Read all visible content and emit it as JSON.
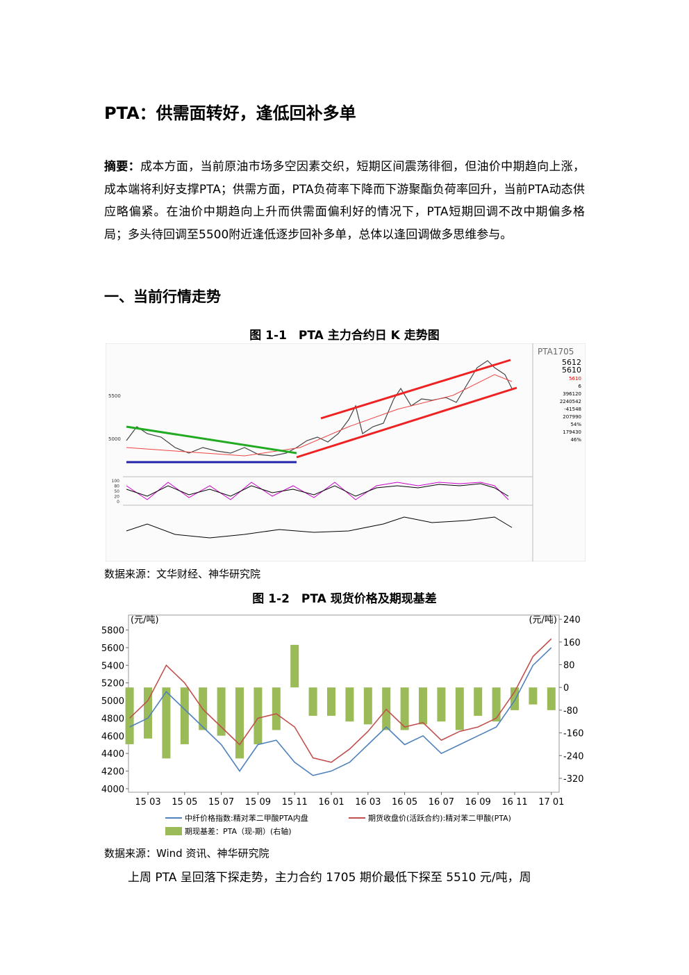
{
  "title": "PTA：供需面转好，逢低回补多单",
  "summary": {
    "label": "摘要：",
    "text": "成本方面，当前原油市场多空因素交织，短期区间震荡徘徊，但油价中期趋向上涨，成本端将利好支撑PTA；供需方面，PTA负荷率下降而下游聚酯负荷率回升，当前PTA动态供应略偏紧。在油价中期趋向上升而供需面偏利好的情况下，PTA短期回调不改中期偏多格局；多头待回调至5500附近逢低逐步回补多单，总体以逢回调做多思维参与。"
  },
  "section_heading": "一、当前行情走势",
  "figure1": {
    "caption": "图 1-1　PTA 主力合约日 K 走势图",
    "panel_title": "PTA1705",
    "price_ticks": [
      "5500",
      "5000"
    ],
    "osc_ticks": [
      "100",
      "80",
      "50",
      "20",
      "0"
    ],
    "quote_values": [
      "5612",
      "5610",
      "5610",
      "6",
      "396120",
      "2240542",
      "-41548",
      "207990",
      "54%",
      "179430",
      "46%"
    ],
    "source": "数据来源：文华财经、神华研究院"
  },
  "figure2": {
    "caption": "图 1-2　PTA 现货价格及期现基差",
    "source": "数据来源：Wind 资讯、神华研究院"
  },
  "chart_data": {
    "type": "combo",
    "ylabel": "(元/吨)",
    "y2label": "(元/吨)",
    "categories": [
      null,
      "15 03",
      null,
      "15 05",
      null,
      "15 07",
      null,
      "15 09",
      null,
      "15 11",
      null,
      "16 01",
      null,
      "16 03",
      null,
      "16 05",
      null,
      "16 07",
      null,
      "16 09",
      null,
      "16 11",
      null,
      "17 01"
    ],
    "series": [
      {
        "name": "中纤价格指数:精对苯二甲酸PTA内盘",
        "color": "#4f81bd",
        "type": "line",
        "values": [
          4700,
          4800,
          5100,
          4900,
          4700,
          4500,
          4200,
          4500,
          4550,
          4300,
          4150,
          4200,
          4300,
          4500,
          4700,
          4500,
          4600,
          4400,
          4500,
          4600,
          4700,
          5000,
          5400,
          5600
        ]
      },
      {
        "name": "期货收盘价(活跃合约):精对苯二甲酸(PTA)",
        "color": "#c0504d",
        "type": "line",
        "values": [
          4800,
          5000,
          5400,
          5200,
          4900,
          4700,
          4500,
          4800,
          4850,
          4700,
          4350,
          4300,
          4450,
          4650,
          4900,
          4700,
          4750,
          4550,
          4650,
          4700,
          4800,
          5100,
          5500,
          5700
        ]
      },
      {
        "name": "期现基差：PTA（现-期）(右轴)",
        "color": "#9bbb59",
        "type": "bar",
        "axis": "y2",
        "values": [
          -200,
          -180,
          -250,
          -200,
          -150,
          -170,
          -250,
          -200,
          -150,
          150,
          -100,
          -100,
          -120,
          -130,
          -150,
          -150,
          -130,
          -120,
          -150,
          -100,
          -120,
          -80,
          -60,
          -80
        ]
      }
    ],
    "ylim": [
      3960,
      5970
    ],
    "yticks": [
      4000,
      4200,
      4400,
      4600,
      4800,
      5000,
      5200,
      5400,
      5600,
      5800
    ],
    "y2lim": [
      -369,
      255
    ],
    "y2ticks": [
      -320,
      -240,
      -160,
      -80,
      0,
      80,
      160,
      240
    ]
  },
  "body": "上周 PTA 呈回落下探走势，主力合约 1705 期价最低下探至 5510 元/吨，周"
}
